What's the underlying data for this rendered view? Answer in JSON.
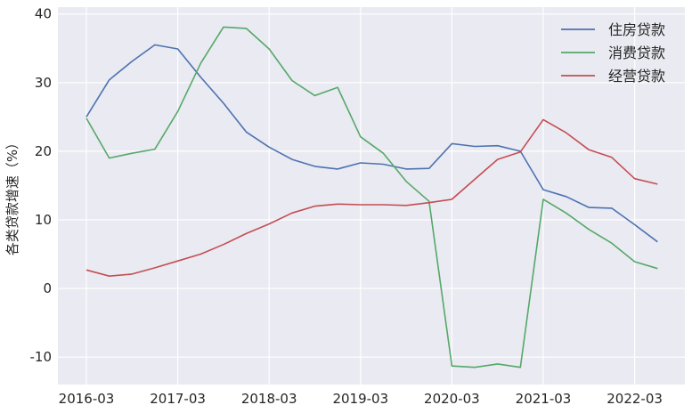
{
  "chart_data": {
    "type": "line",
    "ylabel": "各类贷款增速（%）",
    "xlabel": "",
    "ylim": [
      -14,
      41
    ],
    "yticks": [
      -10,
      0,
      10,
      20,
      30,
      40
    ],
    "x": [
      "2016-03",
      "2016-06",
      "2016-09",
      "2016-12",
      "2017-03",
      "2017-06",
      "2017-09",
      "2017-12",
      "2018-03",
      "2018-06",
      "2018-09",
      "2018-12",
      "2019-03",
      "2019-06",
      "2019-09",
      "2019-12",
      "2020-03",
      "2020-06",
      "2020-09",
      "2020-12",
      "2021-03",
      "2021-06",
      "2021-09",
      "2021-12",
      "2022-03",
      "2022-06"
    ],
    "xticks": [
      "2016-03",
      "2017-03",
      "2018-03",
      "2019-03",
      "2020-03",
      "2021-03",
      "2022-03"
    ],
    "grid": true,
    "legend_position": "top-right",
    "series": [
      {
        "name": "住房贷款",
        "color": "#4c72b0",
        "values": [
          25.0,
          30.4,
          33.1,
          35.5,
          34.9,
          30.8,
          27.0,
          22.8,
          20.6,
          18.8,
          17.8,
          17.4,
          18.3,
          18.1,
          17.4,
          17.5,
          21.1,
          20.7,
          20.8,
          20.0,
          14.4,
          13.4,
          11.8,
          11.7,
          9.3,
          6.8
        ]
      },
      {
        "name": "消费贷款",
        "color": "#55a868",
        "values": [
          24.8,
          19.0,
          19.7,
          20.3,
          25.8,
          32.8,
          38.1,
          37.9,
          34.9,
          30.3,
          28.1,
          29.3,
          22.1,
          19.7,
          15.6,
          12.7,
          -11.3,
          -11.5,
          -11.0,
          -11.5,
          13.0,
          11.0,
          8.6,
          6.6,
          3.9,
          2.9
        ]
      },
      {
        "name": "经营贷款",
        "color": "#c44e52",
        "values": [
          2.7,
          1.8,
          2.1,
          3.0,
          4.0,
          5.0,
          6.4,
          8.0,
          9.4,
          11.0,
          12.0,
          12.3,
          12.2,
          12.2,
          12.1,
          12.5,
          13.0,
          15.9,
          18.8,
          19.9,
          24.6,
          22.7,
          20.2,
          19.1,
          16.0,
          15.2
        ]
      }
    ]
  }
}
